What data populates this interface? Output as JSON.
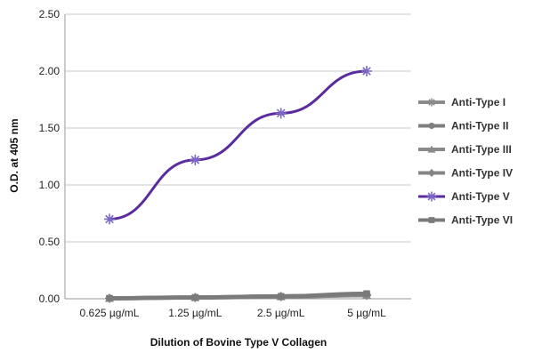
{
  "chart_data": {
    "type": "line",
    "categories": [
      "0.625 µg/mL",
      "1.25 µg/mL",
      "2.5 µg/mL",
      "5 µg/mL"
    ],
    "xlabel": "Dilution of Bovine Type V Collagen",
    "ylabel": "O.D. at 405 nm",
    "ylim": [
      0,
      2.5
    ],
    "yticks": [
      0,
      0.5,
      1.0,
      1.5,
      2.0,
      2.5
    ],
    "ytick_labels": [
      "0.00",
      "0.50",
      "1.00",
      "1.50",
      "2.00",
      "2.50"
    ],
    "grid": "horizontal",
    "legend_position": "right",
    "series": [
      {
        "name": "Anti-Type I",
        "values": [
          0.003,
          0.01,
          0.018,
          0.03
        ],
        "marker": "star",
        "color": "#8c8c8c"
      },
      {
        "name": "Anti-Type II",
        "values": [
          0.005,
          0.012,
          0.02,
          0.035
        ],
        "marker": "circle",
        "color": "#7f7f7f"
      },
      {
        "name": "Anti-Type III",
        "values": [
          0.004,
          0.011,
          0.019,
          0.032
        ],
        "marker": "triangle",
        "color": "#8a8a8a"
      },
      {
        "name": "Anti-Type IV",
        "values": [
          0.006,
          0.013,
          0.022,
          0.038
        ],
        "marker": "diamond",
        "color": "#858585"
      },
      {
        "name": "Anti-Type V",
        "values": [
          0.7,
          1.22,
          1.63,
          2.0
        ],
        "marker": "star",
        "color": "#5b2ca0"
      },
      {
        "name": "Anti-Type VI",
        "values": [
          0.004,
          0.012,
          0.021,
          0.045
        ],
        "marker": "square",
        "color": "#7a7a7a"
      }
    ]
  }
}
